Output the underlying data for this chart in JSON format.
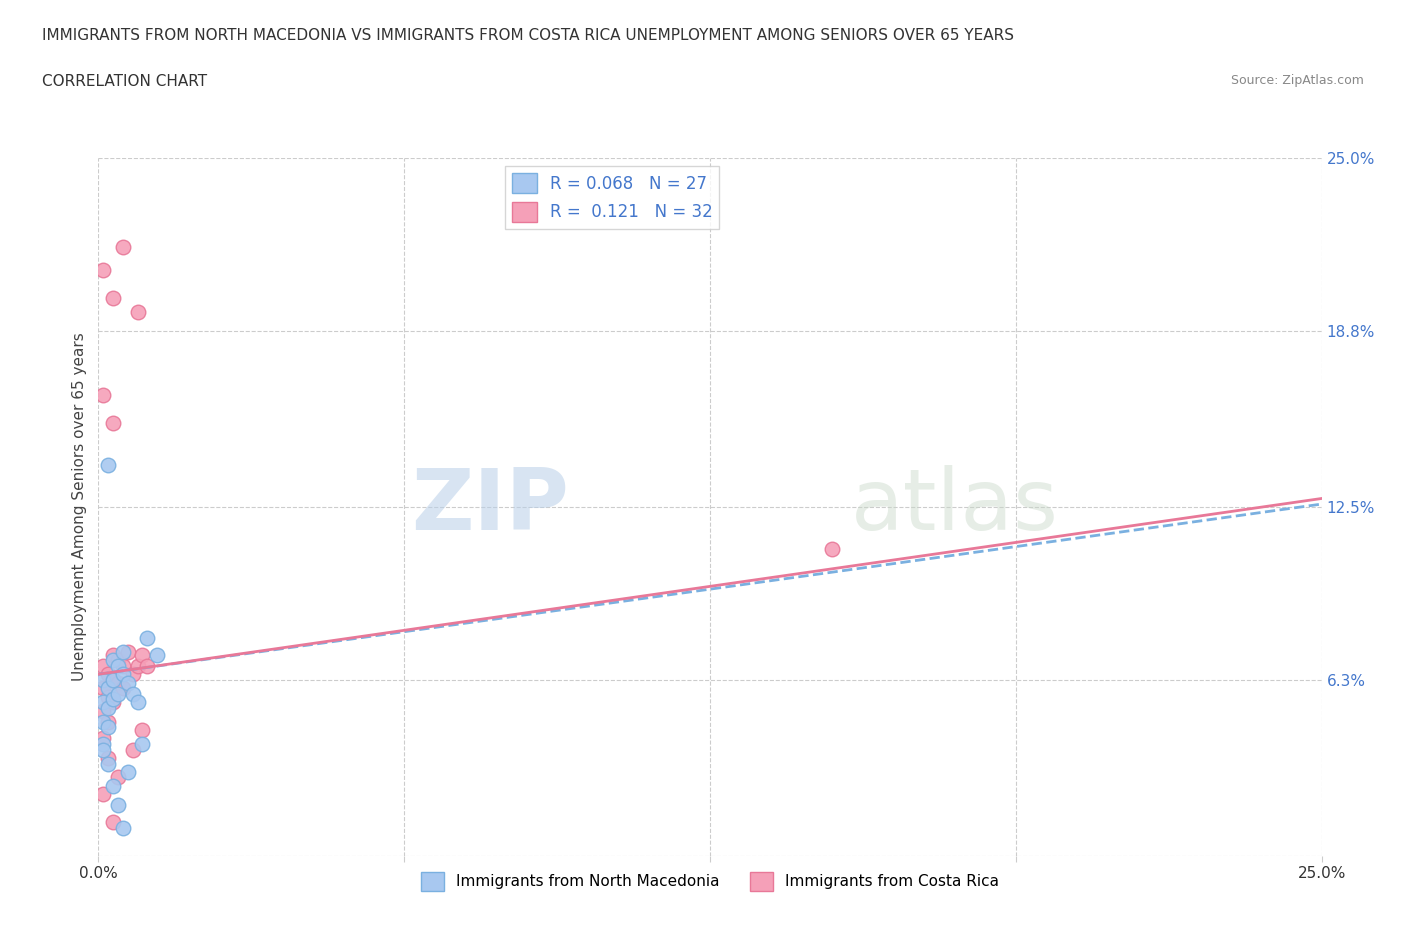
{
  "title_line1": "IMMIGRANTS FROM NORTH MACEDONIA VS IMMIGRANTS FROM COSTA RICA UNEMPLOYMENT AMONG SENIORS OVER 65 YEARS",
  "title_line2": "CORRELATION CHART",
  "source": "Source: ZipAtlas.com",
  "xlabel": "",
  "ylabel": "Unemployment Among Seniors over 65 years",
  "xlim": [
    0.0,
    0.25
  ],
  "ylim": [
    0.0,
    0.25
  ],
  "ytick_values": [
    0.0,
    0.063,
    0.125,
    0.188,
    0.25
  ],
  "ytick_labels": [
    "",
    "6.3%",
    "12.5%",
    "18.8%",
    "25.0%"
  ],
  "r_macedonia": 0.068,
  "n_macedonia": 27,
  "r_costarica": 0.121,
  "n_costarica": 32,
  "color_macedonia": "#a8c8f0",
  "color_costarica": "#f5a0b8",
  "line_color_macedonia": "#7ab0e0",
  "line_color_costarica": "#e87898",
  "legend_label_macedonia": "Immigrants from North Macedonia",
  "legend_label_costarica": "Immigrants from Costa Rica",
  "watermark_zip": "ZIP",
  "watermark_atlas": "atlas",
  "background_color": "#ffffff",
  "grid_color": "#cccccc",
  "right_label_color": "#4477cc",
  "reg_macedonia": [
    0.0,
    0.065,
    0.25,
    0.126
  ],
  "reg_costarica": [
    0.0,
    0.065,
    0.25,
    0.128
  ],
  "scatter_macedonia": [
    [
      0.001,
      0.063
    ],
    [
      0.001,
      0.055
    ],
    [
      0.001,
      0.048
    ],
    [
      0.002,
      0.06
    ],
    [
      0.002,
      0.053
    ],
    [
      0.002,
      0.046
    ],
    [
      0.003,
      0.07
    ],
    [
      0.003,
      0.063
    ],
    [
      0.003,
      0.056
    ],
    [
      0.004,
      0.068
    ],
    [
      0.004,
      0.058
    ],
    [
      0.005,
      0.073
    ],
    [
      0.005,
      0.065
    ],
    [
      0.006,
      0.062
    ],
    [
      0.007,
      0.058
    ],
    [
      0.008,
      0.055
    ],
    [
      0.01,
      0.078
    ],
    [
      0.012,
      0.072
    ],
    [
      0.001,
      0.04
    ],
    [
      0.002,
      0.033
    ],
    [
      0.003,
      0.025
    ],
    [
      0.004,
      0.018
    ],
    [
      0.005,
      0.01
    ],
    [
      0.002,
      0.14
    ],
    [
      0.001,
      0.038
    ],
    [
      0.009,
      0.04
    ],
    [
      0.006,
      0.03
    ]
  ],
  "scatter_costarica": [
    [
      0.001,
      0.068
    ],
    [
      0.001,
      0.06
    ],
    [
      0.001,
      0.052
    ],
    [
      0.002,
      0.065
    ],
    [
      0.002,
      0.057
    ],
    [
      0.002,
      0.048
    ],
    [
      0.003,
      0.072
    ],
    [
      0.003,
      0.063
    ],
    [
      0.003,
      0.055
    ],
    [
      0.004,
      0.07
    ],
    [
      0.004,
      0.062
    ],
    [
      0.005,
      0.068
    ],
    [
      0.005,
      0.06
    ],
    [
      0.006,
      0.073
    ],
    [
      0.007,
      0.065
    ],
    [
      0.008,
      0.068
    ],
    [
      0.009,
      0.072
    ],
    [
      0.01,
      0.068
    ],
    [
      0.001,
      0.21
    ],
    [
      0.003,
      0.2
    ],
    [
      0.005,
      0.218
    ],
    [
      0.008,
      0.195
    ],
    [
      0.001,
      0.165
    ],
    [
      0.003,
      0.155
    ],
    [
      0.001,
      0.042
    ],
    [
      0.002,
      0.035
    ],
    [
      0.004,
      0.028
    ],
    [
      0.003,
      0.012
    ],
    [
      0.007,
      0.038
    ],
    [
      0.009,
      0.045
    ],
    [
      0.15,
      0.11
    ],
    [
      0.001,
      0.022
    ]
  ]
}
